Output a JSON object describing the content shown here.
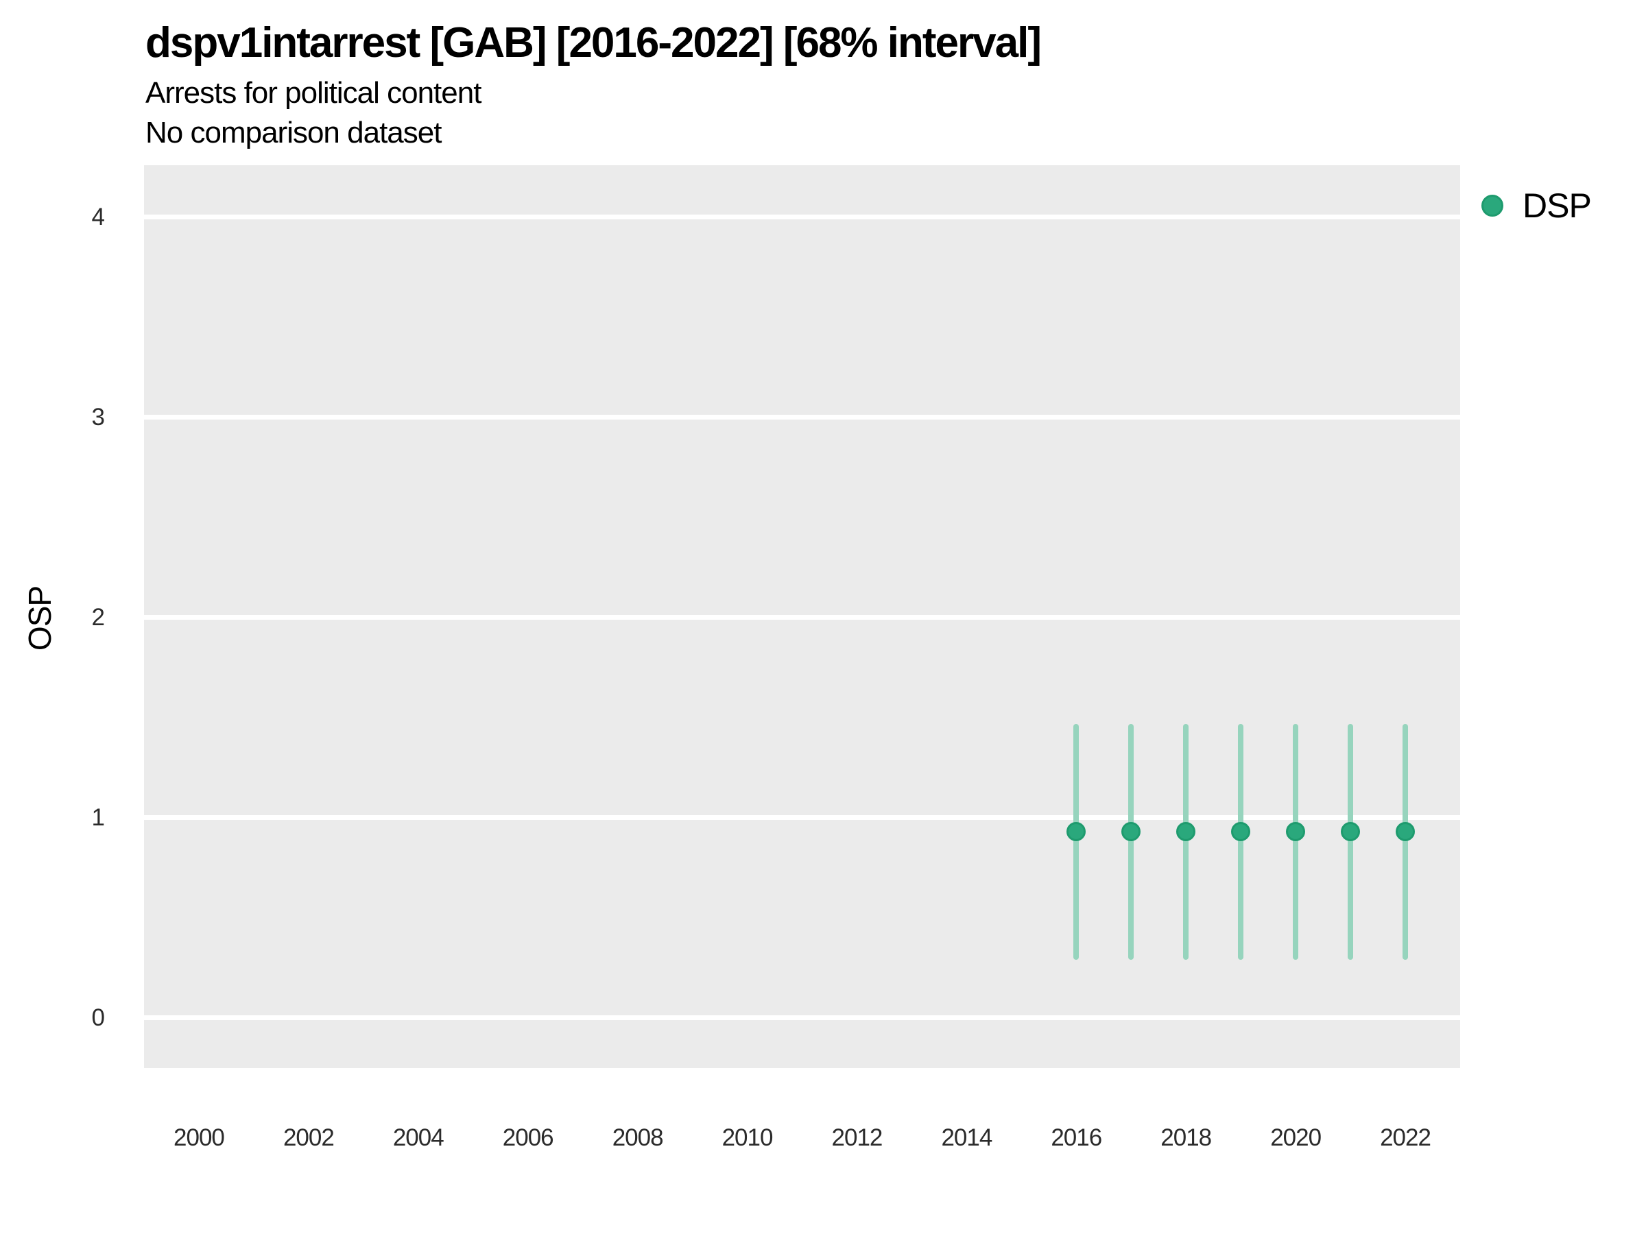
{
  "chart_data": {
    "type": "scatter",
    "title": "dspv1intarrest [GAB] [2016-2022] [68% interval]",
    "subtitle": "Arrests for political content",
    "note": "No comparison dataset",
    "ylabel": "OSP",
    "xlabel": "",
    "interval_level": "68%",
    "xlim": [
      1999,
      2023
    ],
    "ylim": [
      -0.25,
      4.26
    ],
    "x_ticks": [
      "2000",
      "2002",
      "2004",
      "2006",
      "2008",
      "2010",
      "2012",
      "2014",
      "2016",
      "2018",
      "2020",
      "2022"
    ],
    "y_ticks": [
      "0",
      "1",
      "2",
      "3",
      "4"
    ],
    "grid": {
      "horizontal_major": true,
      "vertical": false
    },
    "legend": {
      "position": "top-right",
      "entries": [
        {
          "label": "DSP",
          "color": "#2aa87c"
        }
      ]
    },
    "series": [
      {
        "name": "DSP",
        "point_color": "#2aa87c",
        "point_stroke_color": "#1e9b6e",
        "interval_color": "#96d4bd",
        "points": [
          {
            "x": 2016,
            "y": 0.93,
            "low": 0.29,
            "high": 1.47
          },
          {
            "x": 2017,
            "y": 0.93,
            "low": 0.29,
            "high": 1.47
          },
          {
            "x": 2018,
            "y": 0.93,
            "low": 0.29,
            "high": 1.47
          },
          {
            "x": 2019,
            "y": 0.93,
            "low": 0.29,
            "high": 1.47
          },
          {
            "x": 2020,
            "y": 0.93,
            "low": 0.29,
            "high": 1.47
          },
          {
            "x": 2021,
            "y": 0.93,
            "low": 0.29,
            "high": 1.47
          },
          {
            "x": 2022,
            "y": 0.93,
            "low": 0.29,
            "high": 1.47
          }
        ]
      }
    ],
    "colors": {
      "panel_background": "#ebebeb",
      "grid_line": "#ffffff",
      "title_text": "#000000",
      "tick_text": "#2b2b2b"
    }
  }
}
